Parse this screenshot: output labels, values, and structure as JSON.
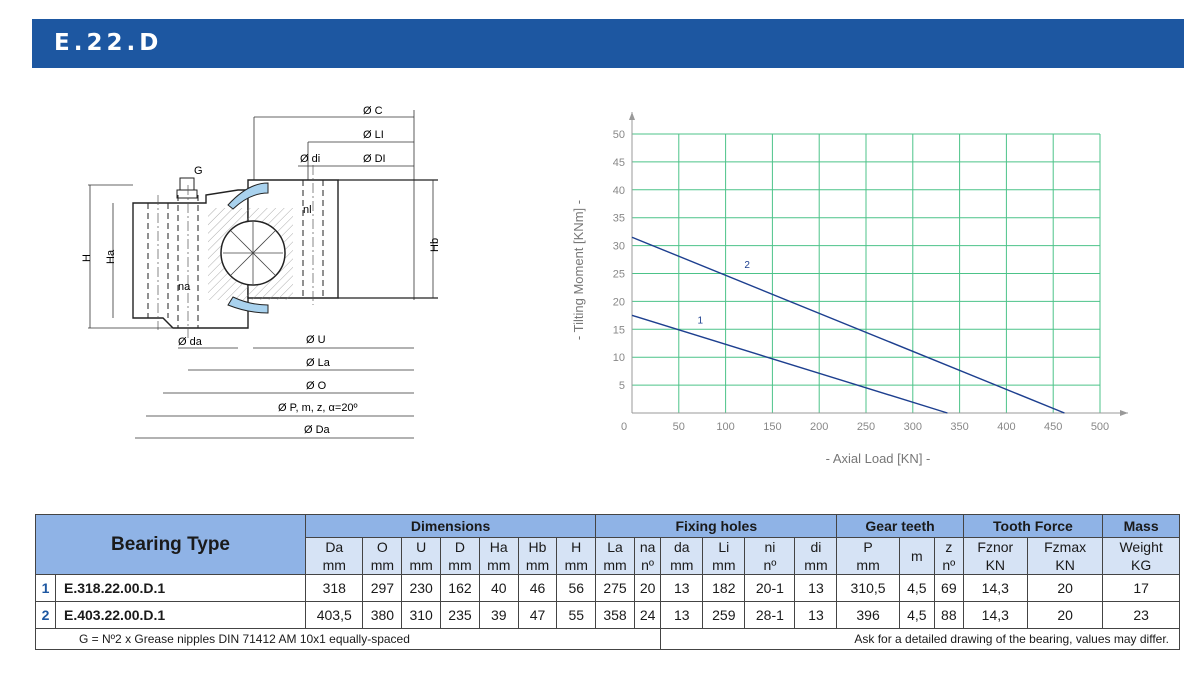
{
  "header": {
    "title": "E.22.D"
  },
  "drawing": {
    "labels": {
      "c": "Ø C",
      "li": "Ø LI",
      "di_cap": "Ø DI",
      "di": "Ø di",
      "nl": "nl",
      "g": "G",
      "h": "H",
      "ha": "Ha",
      "hb": "Hb",
      "na": "na",
      "da": "Ø da",
      "u": "Ø U",
      "la": "Ø La",
      "o": "Ø O",
      "p": "Ø P, m, z, α=20º",
      "da_big": "Ø Da"
    }
  },
  "chart_data": {
    "type": "line",
    "title": "",
    "xlabel": "-  Axial Load  [KN]  -",
    "ylabel": "-  Tilting Moment  [KNm]  -",
    "xlim": [
      0,
      500
    ],
    "ylim": [
      0,
      50
    ],
    "xticks": [
      0,
      50,
      100,
      150,
      200,
      250,
      300,
      350,
      400,
      450,
      500
    ],
    "yticks": [
      5,
      10,
      15,
      20,
      25,
      30,
      35,
      40,
      45,
      50
    ],
    "grid": true,
    "grid_color": "#4cc389",
    "line_color": "#1d3f8f",
    "series": [
      {
        "name": "1",
        "x": [
          0,
          337
        ],
        "y": [
          17.5,
          0
        ],
        "label_at": [
          70,
          16
        ]
      },
      {
        "name": "2",
        "x": [
          0,
          462
        ],
        "y": [
          31.5,
          0
        ],
        "label_at": [
          120,
          26
        ]
      }
    ]
  },
  "table": {
    "bearing_type_header": "Bearing  Type",
    "groups": [
      {
        "label": "Dimensions",
        "span": 7
      },
      {
        "label": "Fixing holes",
        "span": 6
      },
      {
        "label": "Gear teeth",
        "span": 3
      },
      {
        "label": "Tooth Force",
        "span": 2
      },
      {
        "label": "Mass",
        "span": 1
      }
    ],
    "columns": [
      {
        "name": "Da",
        "unit": "mm"
      },
      {
        "name": "O",
        "unit": "mm"
      },
      {
        "name": "U",
        "unit": "mm"
      },
      {
        "name": "D",
        "unit": "mm"
      },
      {
        "name": "Ha",
        "unit": "mm"
      },
      {
        "name": "Hb",
        "unit": "mm"
      },
      {
        "name": "H",
        "unit": "mm"
      },
      {
        "name": "La",
        "unit": "mm"
      },
      {
        "name": "na",
        "unit": "nº"
      },
      {
        "name": "da",
        "unit": "mm"
      },
      {
        "name": "Li",
        "unit": "mm"
      },
      {
        "name": "ni",
        "unit": "nº"
      },
      {
        "name": "di",
        "unit": "mm"
      },
      {
        "name": "P",
        "unit": "mm"
      },
      {
        "name": "m",
        "unit": ""
      },
      {
        "name": "z",
        "unit": "nº"
      },
      {
        "name": "Fznor",
        "unit": "KN"
      },
      {
        "name": "Fzmax",
        "unit": "KN"
      },
      {
        "name": "Weight",
        "unit": "KG"
      }
    ],
    "rows": [
      {
        "index": "1",
        "name": "E.318.22.00.D.1",
        "values": [
          "318",
          "297",
          "230",
          "162",
          "40",
          "46",
          "56",
          "275",
          "20",
          "13",
          "182",
          "20-1",
          "13",
          "310,5",
          "4,5",
          "69",
          "14,3",
          "20",
          "17"
        ]
      },
      {
        "index": "2",
        "name": "E.403.22.00.D.1",
        "values": [
          "403,5",
          "380",
          "310",
          "235",
          "39",
          "47",
          "55",
          "358",
          "24",
          "13",
          "259",
          "28-1",
          "13",
          "396",
          "4,5",
          "88",
          "14,3",
          "20",
          "23"
        ]
      }
    ],
    "footnote_left": "G = Nº2 x Grease nipples DIN  71412  AM 10x1 equally-spaced",
    "footnote_right": "Ask for a detailed drawing of the bearing, values may differ."
  }
}
